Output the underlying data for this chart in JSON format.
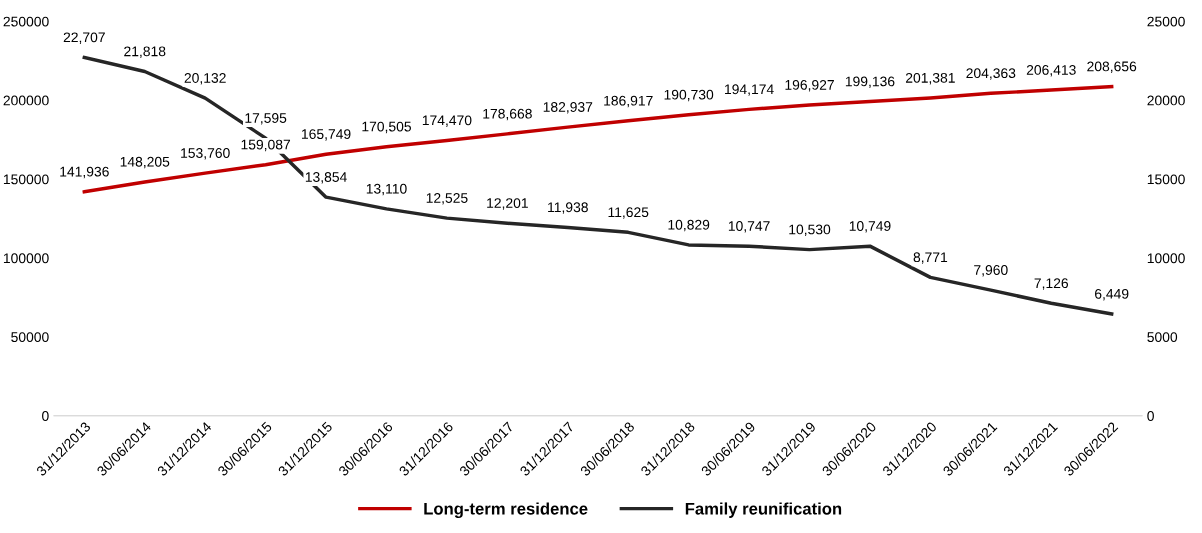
{
  "chart_data": {
    "type": "line",
    "categories": [
      "31/12/2013",
      "30/06/2014",
      "31/12/2014",
      "30/06/2015",
      "31/12/2015",
      "30/06/2016",
      "31/12/2016",
      "30/06/2017",
      "31/12/2017",
      "30/06/2018",
      "31/12/2018",
      "30/06/2019",
      "31/12/2019",
      "30/06/2020",
      "31/12/2020",
      "30/06/2021",
      "31/12/2021",
      "30/06/2022"
    ],
    "series": [
      {
        "name": "Long-term residence",
        "color": "#c00000",
        "values": [
          141936,
          148205,
          153760,
          159087,
          165749,
          170505,
          174470,
          178668,
          182937,
          186917,
          190730,
          194174,
          196927,
          199136,
          201381,
          204363,
          206413,
          208656
        ],
        "value_labels": [
          "141,936",
          "148,205",
          "153,760",
          "159,087",
          "165,749",
          "170,505",
          "174,470",
          "178,668",
          "182,937",
          "186,917",
          "190,730",
          "194,174",
          "196,927",
          "199,136",
          "201,381",
          "204,363",
          "206,413",
          "208,656"
        ]
      },
      {
        "name": "Family reunification",
        "color": "#262626",
        "axis": "y2",
        "values": [
          22707,
          21818,
          20132,
          17595,
          13854,
          13110,
          12525,
          12201,
          11938,
          11625,
          10829,
          10747,
          10530,
          10749,
          8771,
          7960,
          7126,
          6449
        ],
        "value_labels": [
          "22,707",
          "21,818",
          "20,132",
          "17,595",
          "13,854",
          "13,110",
          "12,525",
          "12,201",
          "11,938",
          "11,625",
          "10,829",
          "10,747",
          "10,530",
          "10,749",
          "8,771",
          "7,960",
          "7,126",
          "6,449"
        ]
      }
    ],
    "ylim": [
      0,
      250000
    ],
    "yticks": [
      0,
      50000,
      100000,
      150000,
      200000,
      250000
    ],
    "y2lim": [
      0,
      25000
    ],
    "y2ticks": [
      0,
      5000,
      10000,
      15000,
      20000,
      25000
    ],
    "grid": false,
    "legend": "bottom",
    "marker": "none",
    "line_style": "solid"
  }
}
